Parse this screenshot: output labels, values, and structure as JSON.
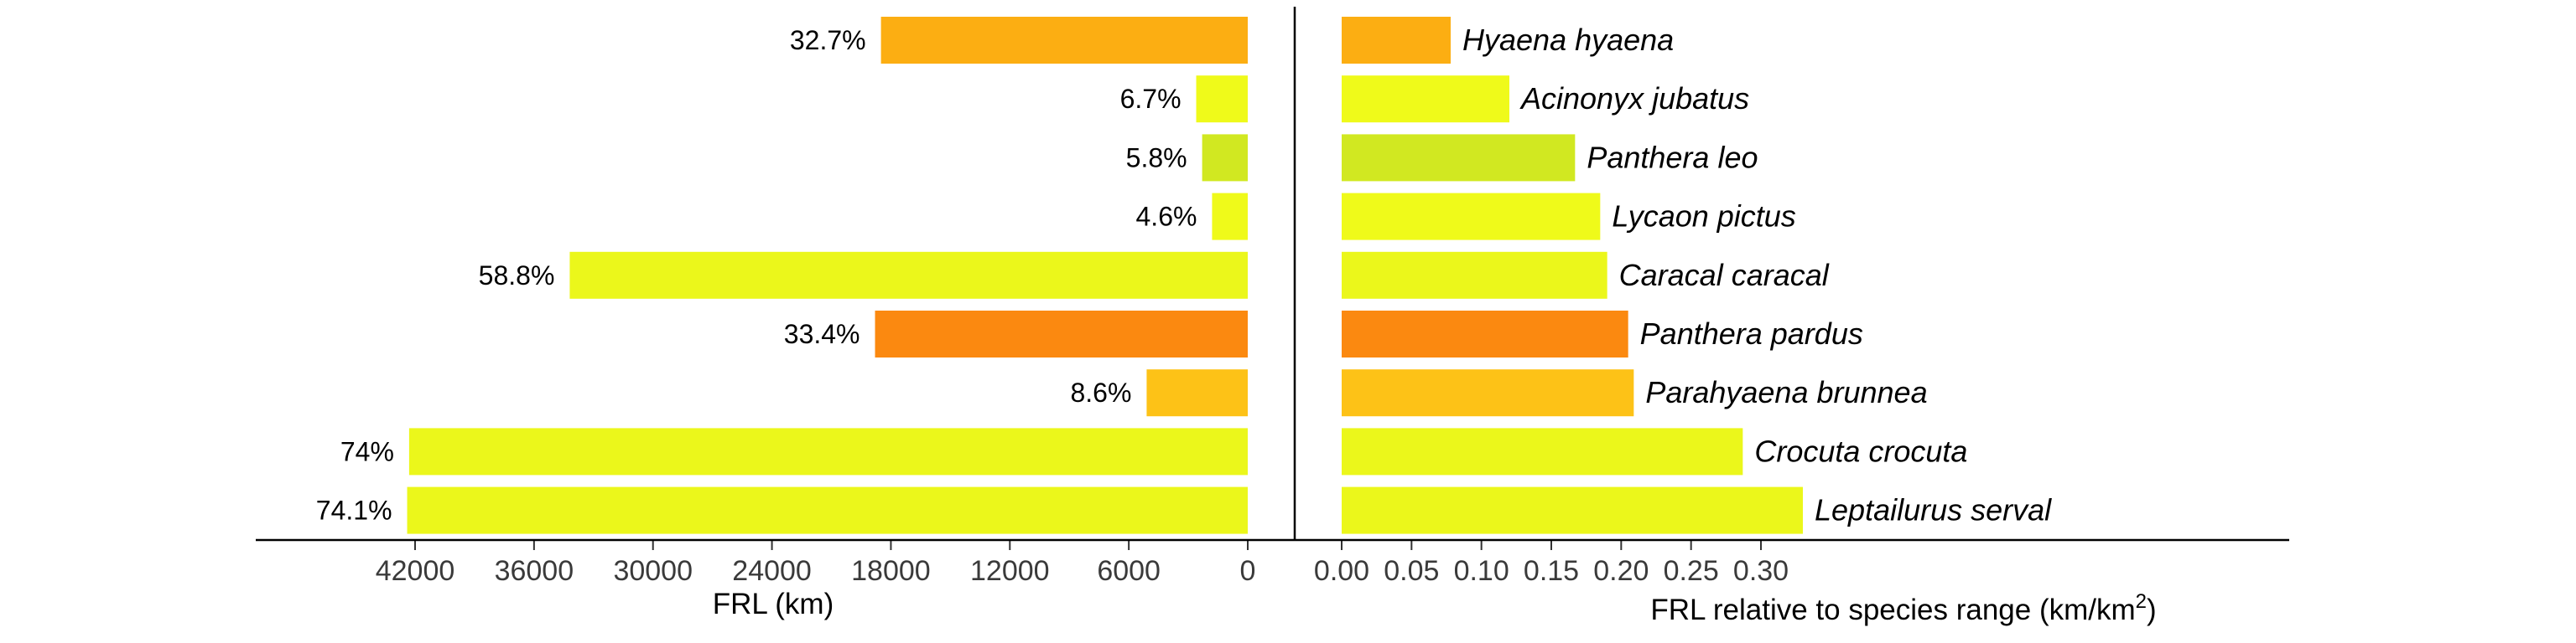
{
  "chart_data": [
    {
      "type": "bar",
      "orientation": "horizontal",
      "direction": "reversed",
      "categories": [
        "Hyaena hyaena",
        "Acinonyx jubatus",
        "Panthera leo",
        "Lycaon pictus",
        "Caracal caracal",
        "Panthera pardus",
        "Parahyaena brunnea",
        "Crocuta crocuta",
        "Leptailurus serval"
      ],
      "values": [
        18500,
        2600,
        2300,
        1800,
        34200,
        18800,
        5100,
        42300,
        42400
      ],
      "data_labels": [
        "32.7%",
        "6.7%",
        "5.8%",
        "4.6%",
        "58.8%",
        "33.4%",
        "8.6%",
        "74%",
        "74.1%"
      ],
      "xlabel": "FRL (km)",
      "xlim": [
        0,
        50000
      ],
      "xticks": [
        42000,
        36000,
        30000,
        24000,
        18000,
        12000,
        6000,
        0
      ],
      "xtick_labels": [
        "42000",
        "36000",
        "30000",
        "24000",
        "18000",
        "12000",
        "6000",
        "0"
      ],
      "grid": false
    },
    {
      "type": "bar",
      "orientation": "horizontal",
      "categories": [
        "Hyaena hyaena",
        "Acinonyx jubatus",
        "Panthera leo",
        "Lycaon pictus",
        "Caracal caracal",
        "Panthera pardus",
        "Parahyaena brunnea",
        "Crocuta crocuta",
        "Leptailurus serval"
      ],
      "values": [
        0.078,
        0.12,
        0.167,
        0.185,
        0.19,
        0.205,
        0.209,
        0.287,
        0.33
      ],
      "xlabel_main": "FRL relative to species range (",
      "xlabel_unit": "km/km",
      "xlabel_sup": "2",
      "xlabel_close": ")",
      "xlim": [
        0,
        0.33
      ],
      "xticks": [
        0,
        0.05,
        0.1,
        0.15,
        0.2,
        0.25,
        0.3
      ],
      "xtick_labels": [
        "0.00",
        "0.05",
        "0.10",
        "0.15",
        "0.20",
        "0.25",
        "0.30"
      ],
      "grid": false
    }
  ],
  "bar_colors": [
    "#FCAE12",
    "#EFFA1A",
    "#D1E821",
    "#EFFA1A",
    "#EBF71B",
    "#FB8910",
    "#FDC217",
    "#EBF71B",
    "#EBF71B"
  ]
}
